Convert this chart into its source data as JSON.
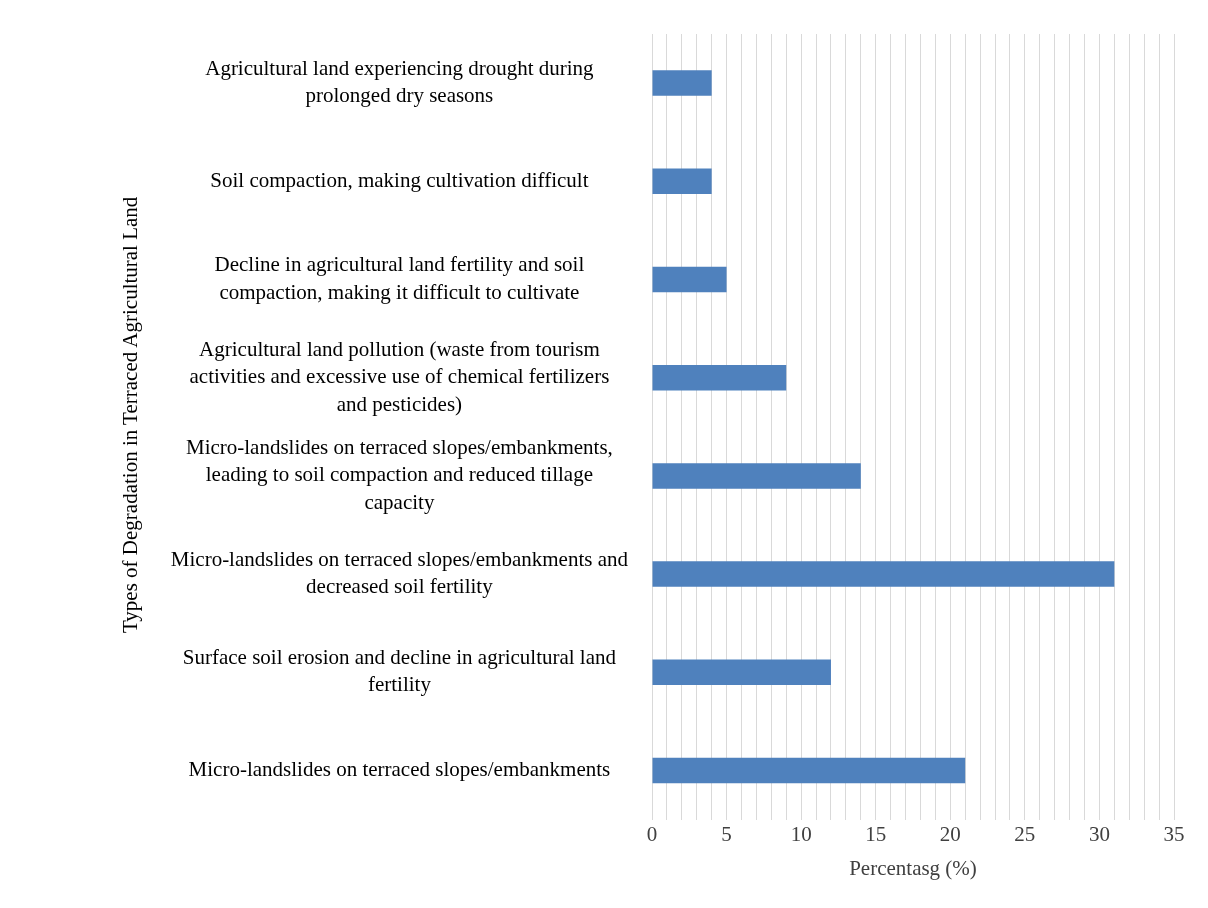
{
  "chart_data": {
    "type": "bar",
    "orientation": "horizontal",
    "xlabel": "Percentasg (%)",
    "ylabel": "Types of Degradation in Terraced Agricultural Land",
    "categories": [
      "Agricultural land experiencing drought during prolonged dry seasons",
      "Soil compaction, making cultivation difficult",
      "Decline in agricultural land fertility and soil compaction, making it difficult to cultivate",
      "Agricultural land pollution (waste from tourism activities and excessive use of chemical fertilizers and pesticides)",
      "Micro-landslides on terraced slopes/embankments, leading to soil compaction and reduced tillage capacity",
      "Micro-landslides on terraced slopes/embankments and decreased soil fertility",
      "Surface soil erosion and decline in agricultural land fertility",
      "Micro-landslides on terraced slopes/embankments"
    ],
    "values": [
      4,
      4,
      5,
      9,
      14,
      31,
      12,
      21
    ],
    "color": "#4f81bd",
    "xlim": [
      0,
      35
    ],
    "xticks": [
      0,
      {
        "value": 1,
        "label": null
      },
      {
        "value": 2,
        "label": null
      },
      {
        "value": 3,
        "label": null
      },
      {
        "value": 4,
        "label": null
      },
      5,
      {
        "value": 6,
        "label": null
      },
      {
        "value": 7,
        "label": null
      },
      {
        "value": 8,
        "label": null
      },
      {
        "value": 9,
        "label": null
      },
      10,
      {
        "value": 11,
        "label": null
      },
      {
        "value": 12,
        "label": null
      },
      {
        "value": 13,
        "label": null
      },
      {
        "value": 14,
        "label": null
      },
      15,
      {
        "value": 16,
        "label": null
      },
      {
        "value": 17,
        "label": null
      },
      {
        "value": 18,
        "label": null
      },
      {
        "value": 19,
        "label": null
      },
      20,
      {
        "value": 21,
        "label": null
      },
      {
        "value": 22,
        "label": null
      },
      {
        "value": 23,
        "label": null
      },
      {
        "value": 24,
        "label": null
      },
      25,
      {
        "value": 26,
        "label": null
      },
      {
        "value": 27,
        "label": null
      },
      {
        "value": 28,
        "label": null
      },
      {
        "value": 29,
        "label": null
      },
      30,
      {
        "value": 31,
        "label": null
      },
      {
        "value": 32,
        "label": null
      },
      {
        "value": 33,
        "label": null
      },
      {
        "value": 34,
        "label": null
      },
      35
    ],
    "grid": "x",
    "legend": false
  }
}
